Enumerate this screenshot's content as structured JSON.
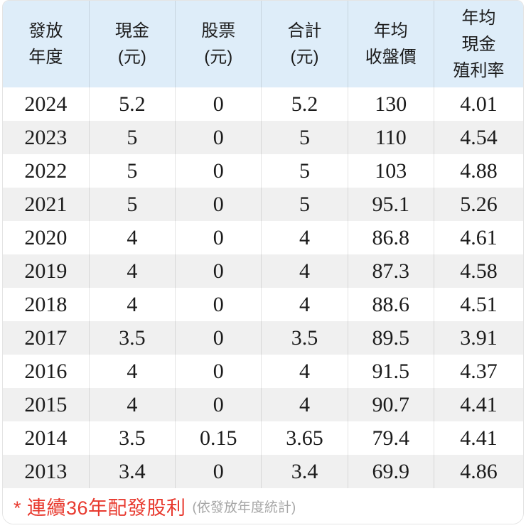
{
  "colors": {
    "header_bg": "#deedf9",
    "alt_row_bg": "#f0f0f0",
    "separator": "rgba(0,0,0,0.10)",
    "note_red": "#e8392e",
    "note_gray": "#a6a6a6",
    "text": "#1b1b1b"
  },
  "table": {
    "headers": [
      {
        "label": "發放年度",
        "lines": [
          "發放",
          "年度"
        ]
      },
      {
        "label": "現金(元)",
        "lines": [
          "現金",
          "(元)"
        ]
      },
      {
        "label": "股票(元)",
        "lines": [
          "股票",
          "(元)"
        ]
      },
      {
        "label": "合計(元)",
        "lines": [
          "合計",
          "(元)"
        ]
      },
      {
        "label": "年均收盤價",
        "lines": [
          "年均",
          "收盤價"
        ]
      },
      {
        "label": "年均現金殖利率",
        "lines": [
          "年均",
          "現金",
          "殖利率"
        ]
      }
    ],
    "rows": [
      {
        "year": "2024",
        "cash": "5.2",
        "stock": "0",
        "total": "5.2",
        "avg_close": "130",
        "cash_yield": "4.01"
      },
      {
        "year": "2023",
        "cash": "5",
        "stock": "0",
        "total": "5",
        "avg_close": "110",
        "cash_yield": "4.54"
      },
      {
        "year": "2022",
        "cash": "5",
        "stock": "0",
        "total": "5",
        "avg_close": "103",
        "cash_yield": "4.88"
      },
      {
        "year": "2021",
        "cash": "5",
        "stock": "0",
        "total": "5",
        "avg_close": "95.1",
        "cash_yield": "5.26"
      },
      {
        "year": "2020",
        "cash": "4",
        "stock": "0",
        "total": "4",
        "avg_close": "86.8",
        "cash_yield": "4.61"
      },
      {
        "year": "2019",
        "cash": "4",
        "stock": "0",
        "total": "4",
        "avg_close": "87.3",
        "cash_yield": "4.58"
      },
      {
        "year": "2018",
        "cash": "4",
        "stock": "0",
        "total": "4",
        "avg_close": "88.6",
        "cash_yield": "4.51"
      },
      {
        "year": "2017",
        "cash": "3.5",
        "stock": "0",
        "total": "3.5",
        "avg_close": "89.5",
        "cash_yield": "3.91"
      },
      {
        "year": "2016",
        "cash": "4",
        "stock": "0",
        "total": "4",
        "avg_close": "91.5",
        "cash_yield": "4.37"
      },
      {
        "year": "2015",
        "cash": "4",
        "stock": "0",
        "total": "4",
        "avg_close": "90.7",
        "cash_yield": "4.41"
      },
      {
        "year": "2014",
        "cash": "3.5",
        "stock": "0.15",
        "total": "3.65",
        "avg_close": "79.4",
        "cash_yield": "4.41"
      },
      {
        "year": "2013",
        "cash": "3.4",
        "stock": "0",
        "total": "3.4",
        "avg_close": "69.9",
        "cash_yield": "4.86"
      }
    ]
  },
  "footer": {
    "note": "* 連續36年配發股利",
    "note_detail": "(依發放年度統計)"
  }
}
